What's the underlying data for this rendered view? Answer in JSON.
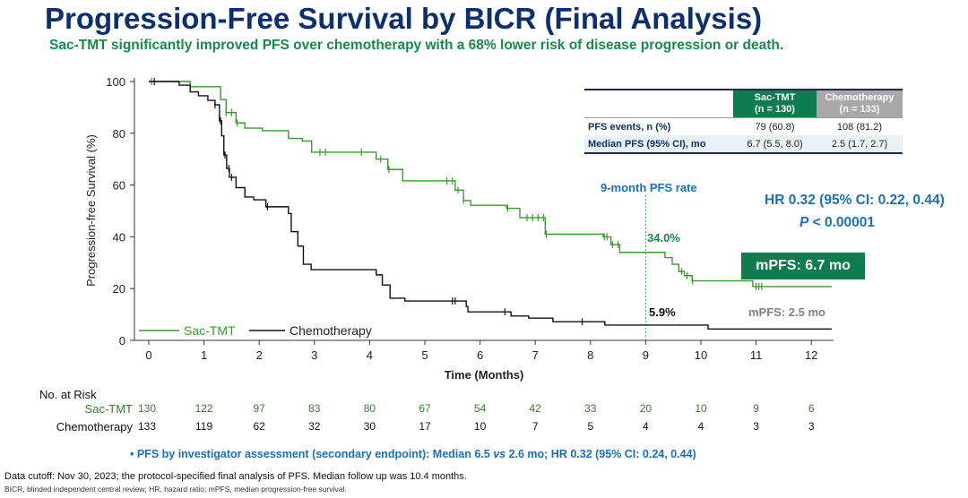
{
  "header": {
    "title": "Progression-Free Survival by BICR (Final Analysis)",
    "subtitle": "Sac-TMT significantly improved PFS over chemotherapy with a 68% lower risk of disease progression or death."
  },
  "summary_table": {
    "col_sac": "Sac-TMT",
    "col_sac_n": "(n = 130)",
    "col_chemo": "Chemotherapy",
    "col_chemo_n": "(n = 133)",
    "rows": [
      {
        "label": "PFS events, n (%)",
        "sac": "79 (60.8)",
        "chemo": "108 (81.2)"
      },
      {
        "label": "Median PFS (95% CI), mo",
        "sac": "6.7 (5.5, 8.0)",
        "chemo": "2.5 (1.7, 2.7)"
      }
    ]
  },
  "annotations": {
    "hr": "HR 0.32 (95% CI: 0.22, 0.44)",
    "p_italic": "P",
    "p_rest": " < 0.00001",
    "mpfs_sac": "mPFS: 6.7 mo",
    "mpfs_chemo": "mPFS: 2.5 mo",
    "rate_title": "9-month PFS rate",
    "rate_sac": "34.0%",
    "rate_chemo": "5.9%"
  },
  "chart_data": {
    "type": "line",
    "title": "",
    "xlabel": "Time (Months)",
    "ylabel": "Progression-free Survival (%)",
    "xlim": [
      0,
      12.4
    ],
    "ylim": [
      0,
      100
    ],
    "xticks": [
      0,
      1,
      2,
      3,
      4,
      5,
      6,
      7,
      8,
      9,
      10,
      11,
      12
    ],
    "yticks": [
      0,
      20,
      40,
      60,
      80,
      100
    ],
    "grid": false,
    "legend": "bottom-left",
    "colors": {
      "sac": "#3a9a2e",
      "chemo": "#111111",
      "ref_line": "#4a7fd0"
    },
    "reference_x": 9,
    "series": [
      {
        "name": "Sac-TMT",
        "key": "sac",
        "steps": [
          [
            0,
            100
          ],
          [
            0.75,
            98
          ],
          [
            1.3,
            93
          ],
          [
            1.4,
            88
          ],
          [
            1.58,
            84
          ],
          [
            1.74,
            82
          ],
          [
            2.06,
            81
          ],
          [
            2.53,
            78
          ],
          [
            2.78,
            77
          ],
          [
            2.95,
            72.7
          ],
          [
            4.12,
            70
          ],
          [
            4.33,
            66
          ],
          [
            4.6,
            61.6
          ],
          [
            5.55,
            58
          ],
          [
            5.7,
            54
          ],
          [
            5.83,
            52.2
          ],
          [
            6.48,
            51
          ],
          [
            6.72,
            47.4
          ],
          [
            7.18,
            41
          ],
          [
            8.23,
            40
          ],
          [
            8.37,
            37
          ],
          [
            8.53,
            34
          ],
          [
            9.35,
            32
          ],
          [
            9.48,
            29.4
          ],
          [
            9.6,
            26.6
          ],
          [
            9.7,
            25
          ],
          [
            9.84,
            23
          ],
          [
            10.94,
            20.8
          ],
          [
            12.37,
            20.8
          ]
        ],
        "censored": [
          0.05,
          1.4,
          1.5,
          1.6,
          3.1,
          3.2,
          3.85,
          4.2,
          4.35,
          5.4,
          5.5,
          5.6,
          5.7,
          6.5,
          6.85,
          6.95,
          7.05,
          7.15,
          7.2,
          8.25,
          8.3,
          8.4,
          8.5,
          9.65,
          9.75,
          9.85,
          11.0,
          11.05,
          11.1
        ]
      },
      {
        "name": "Chemotherapy",
        "key": "chemo",
        "steps": [
          [
            0,
            100
          ],
          [
            0.55,
            98.6
          ],
          [
            0.75,
            96
          ],
          [
            0.9,
            94.5
          ],
          [
            1.07,
            92.7
          ],
          [
            1.2,
            91
          ],
          [
            1.28,
            84.8
          ],
          [
            1.32,
            79
          ],
          [
            1.36,
            71.6
          ],
          [
            1.41,
            66.4
          ],
          [
            1.46,
            63
          ],
          [
            1.58,
            59
          ],
          [
            1.74,
            55.4
          ],
          [
            1.9,
            54.3
          ],
          [
            2.12,
            51.6
          ],
          [
            2.53,
            49
          ],
          [
            2.58,
            42
          ],
          [
            2.7,
            36.4
          ],
          [
            2.8,
            29.4
          ],
          [
            2.94,
            27.3
          ],
          [
            4.12,
            25.3
          ],
          [
            4.23,
            21.4
          ],
          [
            4.37,
            16.3
          ],
          [
            4.64,
            15.2
          ],
          [
            5.75,
            13.1
          ],
          [
            5.78,
            11
          ],
          [
            6.56,
            9.4
          ],
          [
            6.88,
            8.6
          ],
          [
            7.32,
            7.2
          ],
          [
            8.26,
            5.9
          ],
          [
            10.13,
            4.4
          ],
          [
            12.37,
            4.4
          ]
        ],
        "censored": [
          0.1,
          1.2,
          1.3,
          1.38,
          1.45,
          1.5,
          2.15,
          5.5,
          5.55,
          6.45,
          7.85
        ]
      }
    ]
  },
  "risk_table": {
    "title": "No. at Risk",
    "rows": [
      {
        "label": "Sac-TMT",
        "color": "#3a7a2e",
        "values": [
          "130",
          "122",
          "97",
          "83",
          "80",
          "67",
          "54",
          "42",
          "33",
          "20",
          "10",
          "9",
          "6"
        ]
      },
      {
        "label": "Chemotherapy",
        "color": "#111111",
        "values": [
          "133",
          "119",
          "62",
          "32",
          "30",
          "17",
          "10",
          "7",
          "5",
          "4",
          "4",
          "3",
          "3"
        ]
      }
    ]
  },
  "footer": {
    "bullet": "•  PFS by investigator assessment (secondary endpoint): Median 6.5 ",
    "bullet_vs": "vs",
    "bullet_rest": " 2.6 mo; HR 0.32 (95% CI: 0.24, 0.44)",
    "note1": "Data cutoff: Nov 30, 2023; the protocol-specified final analysis of PFS.  Median follow up was 10.4 months.",
    "note2": "BICR, blinded independent central review; HR, hazard ratio; mPFS, median progression-free survival."
  }
}
